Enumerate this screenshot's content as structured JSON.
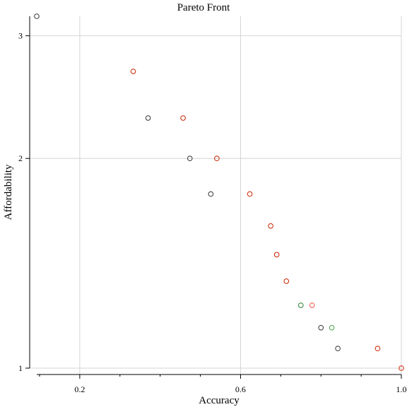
{
  "chart_data": {
    "type": "scatter",
    "title": "Pareto Front",
    "xlabel": "Accuracy",
    "ylabel": "Affordability",
    "xlim": [
      0.093,
      1.0
    ],
    "ylim": [
      1.0,
      3.2
    ],
    "y_scale": "log",
    "x_ticks": [
      0.2,
      0.6,
      1.0
    ],
    "x_tick_labels": [
      "0.2",
      "0.6",
      "1.0"
    ],
    "x_minor_ticks": [
      0.1,
      0.3,
      0.4,
      0.5,
      0.7,
      0.8,
      0.9
    ],
    "y_ticks": [
      1,
      2,
      3
    ],
    "y_tick_labels": [
      "1",
      "2",
      "3"
    ],
    "grid": true,
    "legend": "none",
    "colors": {
      "dark_gray": "#333333",
      "red": "#cc2200",
      "green": "#2e7d32",
      "light_red": "#ee5544",
      "light_green": "#43a047",
      "grid": "#d4d4d4"
    },
    "points": [
      {
        "x": 0.093,
        "y": 3.2,
        "color": "dark_gray"
      },
      {
        "x": 0.333,
        "y": 2.667,
        "color": "red"
      },
      {
        "x": 0.37,
        "y": 2.286,
        "color": "dark_gray"
      },
      {
        "x": 0.457,
        "y": 2.286,
        "color": "red"
      },
      {
        "x": 0.474,
        "y": 2.0,
        "color": "dark_gray"
      },
      {
        "x": 0.541,
        "y": 2.0,
        "color": "red"
      },
      {
        "x": 0.526,
        "y": 1.778,
        "color": "dark_gray"
      },
      {
        "x": 0.623,
        "y": 1.778,
        "color": "red"
      },
      {
        "x": 0.675,
        "y": 1.6,
        "color": "red"
      },
      {
        "x": 0.69,
        "y": 1.455,
        "color": "red"
      },
      {
        "x": 0.714,
        "y": 1.333,
        "color": "red"
      },
      {
        "x": 0.75,
        "y": 1.231,
        "color": "green"
      },
      {
        "x": 0.778,
        "y": 1.231,
        "color": "light_red"
      },
      {
        "x": 0.8,
        "y": 1.143,
        "color": "dark_gray"
      },
      {
        "x": 0.827,
        "y": 1.143,
        "color": "light_green"
      },
      {
        "x": 0.842,
        "y": 1.067,
        "color": "dark_gray"
      },
      {
        "x": 0.941,
        "y": 1.067,
        "color": "red"
      },
      {
        "x": 1.0,
        "y": 1.0,
        "color": "red"
      }
    ]
  }
}
